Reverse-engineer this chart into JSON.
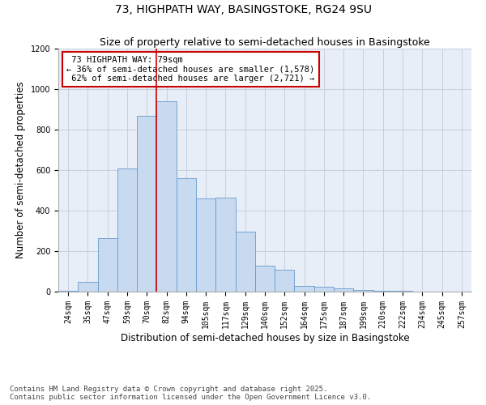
{
  "title": "73, HIGHPATH WAY, BASINGSTOKE, RG24 9SU",
  "subtitle": "Size of property relative to semi-detached houses in Basingstoke",
  "xlabel": "Distribution of semi-detached houses by size in Basingstoke",
  "ylabel": "Number of semi-detached properties",
  "categories": [
    "24sqm",
    "35sqm",
    "47sqm",
    "59sqm",
    "70sqm",
    "82sqm",
    "94sqm",
    "105sqm",
    "117sqm",
    "129sqm",
    "140sqm",
    "152sqm",
    "164sqm",
    "175sqm",
    "187sqm",
    "199sqm",
    "210sqm",
    "222sqm",
    "234sqm",
    "245sqm",
    "257sqm"
  ],
  "values": [
    5,
    50,
    265,
    610,
    870,
    940,
    560,
    460,
    465,
    295,
    130,
    110,
    30,
    25,
    15,
    10,
    6,
    3,
    1,
    0,
    1
  ],
  "bar_color": "#c8daf0",
  "bar_edge_color": "#6699cc",
  "grid_color": "#c8d0dc",
  "background_color": "#e8eef8",
  "property_label": "73 HIGHPATH WAY: 79sqm",
  "pct_smaller": 36,
  "pct_larger": 62,
  "count_smaller": 1578,
  "count_larger": 2721,
  "annotation_box_color": "#ffffff",
  "annotation_box_edge": "#cc0000",
  "vline_color": "#cc0000",
  "vline_position": 4.5,
  "ylim": [
    0,
    1200
  ],
  "yticks": [
    0,
    200,
    400,
    600,
    800,
    1000,
    1200
  ],
  "footer_line1": "Contains HM Land Registry data © Crown copyright and database right 2025.",
  "footer_line2": "Contains public sector information licensed under the Open Government Licence v3.0.",
  "title_fontsize": 10,
  "subtitle_fontsize": 9,
  "tick_fontsize": 7,
  "label_fontsize": 8.5,
  "footer_fontsize": 6.5,
  "annotation_fontsize": 7.5
}
